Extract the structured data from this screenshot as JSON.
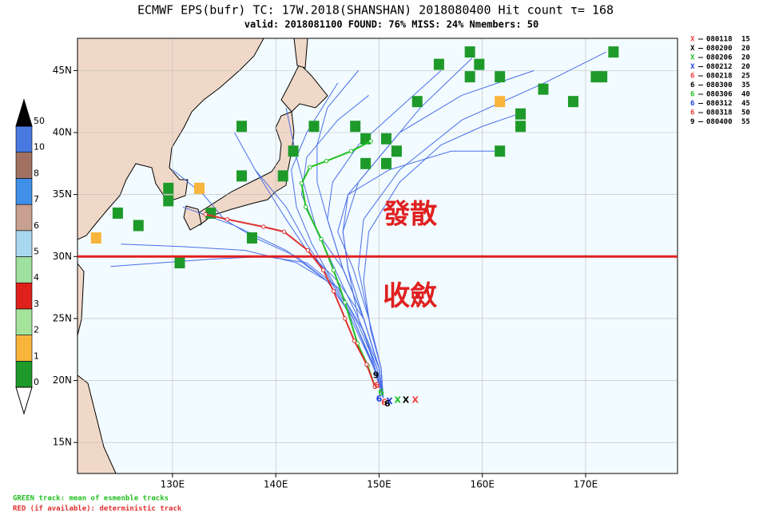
{
  "chart_data": {
    "type": "track-map",
    "title": "ECMWF EPS(bufr) TC: 17W.2018(SHANSHAN) 2018080400 Hit count τ= 168",
    "subtitle": "valid: 2018081100 FOUND: 76% MISS: 24% Nmembers: 50",
    "xlim": [
      120.8,
      178.9
    ],
    "ylim": [
      12.5,
      47.6
    ],
    "xticks": [
      {
        "value": 130,
        "label": "130E"
      },
      {
        "value": 140,
        "label": "140E"
      },
      {
        "value": 150,
        "label": "150E"
      },
      {
        "value": 160,
        "label": "160E"
      },
      {
        "value": 170,
        "label": "170E"
      }
    ],
    "yticks": [
      {
        "value": 15,
        "label": "15N"
      },
      {
        "value": 20,
        "label": "20N"
      },
      {
        "value": 25,
        "label": "25N"
      },
      {
        "value": 30,
        "label": "30N"
      },
      {
        "value": 35,
        "label": "35N"
      },
      {
        "value": 40,
        "label": "40N"
      },
      {
        "value": 45,
        "label": "45N"
      }
    ],
    "grid": true,
    "colorbar": {
      "levels": [
        0,
        1,
        2,
        3,
        4,
        5,
        6,
        7,
        8,
        10,
        50
      ],
      "colors": [
        "#1e9a2a",
        "#f9b43c",
        "#a6e39a",
        "#e0201a",
        "#a0e0a0",
        "#a8d8f0",
        "#c8a090",
        "#4090e8",
        "#a07060",
        "#4878e0"
      ],
      "over": "#000000",
      "under": "#ffffff"
    },
    "boxes": [
      {
        "lon": 155.8,
        "lat": 45.5,
        "count": 1
      },
      {
        "lon": 158.8,
        "lat": 46.5,
        "count": 1
      },
      {
        "lon": 159.7,
        "lat": 45.5,
        "count": 1
      },
      {
        "lon": 158.8,
        "lat": 44.5,
        "count": 1
      },
      {
        "lon": 161.7,
        "lat": 44.5,
        "count": 1
      },
      {
        "lon": 161.7,
        "lat": 42.5,
        "count": 2
      },
      {
        "lon": 165.9,
        "lat": 43.5,
        "count": 1
      },
      {
        "lon": 168.8,
        "lat": 42.5,
        "count": 1
      },
      {
        "lon": 171.0,
        "lat": 44.5,
        "count": 1
      },
      {
        "lon": 171.6,
        "lat": 44.5,
        "count": 1
      },
      {
        "lon": 172.7,
        "lat": 46.5,
        "count": 1
      },
      {
        "lon": 163.7,
        "lat": 41.5,
        "count": 1
      },
      {
        "lon": 163.7,
        "lat": 40.5,
        "count": 1
      },
      {
        "lon": 161.7,
        "lat": 38.5,
        "count": 1
      },
      {
        "lon": 153.7,
        "lat": 42.5,
        "count": 1
      },
      {
        "lon": 136.7,
        "lat": 40.5,
        "count": 1
      },
      {
        "lon": 143.7,
        "lat": 40.5,
        "count": 1
      },
      {
        "lon": 147.7,
        "lat": 40.5,
        "count": 1
      },
      {
        "lon": 148.7,
        "lat": 39.5,
        "count": 1
      },
      {
        "lon": 150.7,
        "lat": 39.5,
        "count": 1
      },
      {
        "lon": 151.7,
        "lat": 38.5,
        "count": 1
      },
      {
        "lon": 148.7,
        "lat": 37.5,
        "count": 1
      },
      {
        "lon": 150.7,
        "lat": 37.5,
        "count": 1
      },
      {
        "lon": 141.7,
        "lat": 38.5,
        "count": 1
      },
      {
        "lon": 136.7,
        "lat": 36.5,
        "count": 1
      },
      {
        "lon": 140.7,
        "lat": 36.5,
        "count": 1
      },
      {
        "lon": 129.6,
        "lat": 35.5,
        "count": 1
      },
      {
        "lon": 129.6,
        "lat": 34.5,
        "count": 1
      },
      {
        "lon": 132.6,
        "lat": 35.5,
        "count": 2
      },
      {
        "lon": 133.7,
        "lat": 33.5,
        "count": 1
      },
      {
        "lon": 124.7,
        "lat": 33.5,
        "count": 1
      },
      {
        "lon": 126.7,
        "lat": 32.5,
        "count": 1
      },
      {
        "lon": 122.6,
        "lat": 31.5,
        "count": 2
      },
      {
        "lon": 137.7,
        "lat": 31.5,
        "count": 1
      },
      {
        "lon": 130.7,
        "lat": 29.5,
        "count": 1
      }
    ],
    "tracks_color": "#4a6ee8",
    "tracks": [
      {
        "lon": [
          150.4,
          149.8,
          148.5,
          146,
          142,
          137,
          131,
          125
        ],
        "lat": [
          18.6,
          20.5,
          24,
          27.5,
          29.5,
          30.5,
          30.8,
          31
        ]
      },
      {
        "lon": [
          150.4,
          149.5,
          147.5,
          145,
          141,
          136,
          131
        ],
        "lat": [
          18.6,
          21,
          25,
          28,
          30.5,
          32.5,
          34
        ]
      },
      {
        "lon": [
          150.4,
          149.5,
          147.5,
          145,
          142,
          138,
          135,
          133,
          130
        ],
        "lat": [
          18.6,
          21,
          25,
          28,
          30,
          31.5,
          33,
          35,
          37
        ]
      },
      {
        "lon": [
          150.4,
          149.5,
          147,
          145,
          143,
          141,
          138,
          136
        ],
        "lat": [
          18.6,
          21,
          25.5,
          28.5,
          31,
          34,
          37,
          40
        ]
      },
      {
        "lon": [
          150.4,
          149.8,
          148,
          146,
          144,
          143,
          142,
          141
        ],
        "lat": [
          18.6,
          21,
          25,
          28.5,
          32,
          35,
          38,
          42
        ]
      },
      {
        "lon": [
          150.4,
          150,
          148.5,
          146.5,
          145,
          145.5,
          148,
          152,
          156
        ],
        "lat": [
          18.6,
          21,
          25,
          29,
          33,
          36,
          39,
          42,
          45
        ]
      },
      {
        "lon": [
          150.4,
          150,
          148.5,
          147,
          146.5,
          148,
          152,
          158,
          165
        ],
        "lat": [
          18.6,
          21,
          25,
          29,
          32,
          36,
          40,
          43,
          45
        ]
      },
      {
        "lon": [
          150.4,
          150.2,
          149,
          148,
          148.5,
          152,
          158,
          166,
          172
        ],
        "lat": [
          18.6,
          21,
          25,
          29,
          33,
          37,
          41,
          44,
          46.5
        ]
      },
      {
        "lon": [
          150.4,
          150.2,
          149,
          147.5,
          146,
          147,
          151,
          157,
          162
        ],
        "lat": [
          18.6,
          21,
          25,
          29,
          32,
          35,
          37,
          38.5,
          38.5
        ]
      },
      {
        "lon": [
          150.4,
          150,
          148.5,
          146,
          143,
          141,
          139.5,
          138
        ],
        "lat": [
          18.6,
          21,
          25,
          28,
          30.5,
          33,
          35,
          37
        ]
      },
      {
        "lon": [
          150.4,
          150,
          148.5,
          146.5,
          145,
          144,
          144,
          145,
          148
        ],
        "lat": [
          18.6,
          21,
          25,
          29,
          33,
          36,
          39,
          42,
          45
        ]
      },
      {
        "lon": [
          150.4,
          150.2,
          149.2,
          148.5,
          149,
          152,
          156,
          160,
          163.5
        ],
        "lat": [
          18.6,
          21,
          24,
          28,
          32,
          36,
          39,
          40.5,
          41.5
        ]
      },
      {
        "lon": [
          150.4,
          149.8,
          148,
          146,
          143,
          139,
          134,
          129,
          124
        ],
        "lat": [
          18.6,
          21,
          24.5,
          27.5,
          29.5,
          30,
          29.8,
          29.5,
          29.2
        ]
      },
      {
        "lon": [
          150.4,
          150,
          148.5,
          146.5,
          144,
          142.5,
          143,
          146,
          149
        ],
        "lat": [
          18.6,
          21,
          25,
          29,
          32,
          35,
          38,
          41,
          43
        ]
      },
      {
        "lon": [
          150.4,
          150,
          148,
          147,
          146.5,
          147,
          150,
          154,
          159
        ],
        "lat": [
          18.6,
          21,
          25,
          29,
          32,
          35,
          38,
          42,
          46
        ]
      },
      {
        "lon": [
          150.4,
          149.6,
          147.5,
          145.5,
          143.5,
          142,
          141.5,
          143,
          146
        ],
        "lat": [
          18.6,
          21,
          25,
          28,
          31,
          34,
          37,
          40,
          44
        ]
      }
    ],
    "mean_track": {
      "color": "#20c020",
      "lon": [
        149.6,
        148.9,
        147.9,
        146.7,
        145.6,
        144.4,
        142.9,
        142.5,
        143.3,
        144.9,
        147.3,
        149.2
      ],
      "lat": [
        19.5,
        21.2,
        23,
        26.3,
        28.9,
        31.4,
        34,
        35.9,
        37.2,
        37.7,
        38.5,
        39.3
      ]
    },
    "deterministic_track": {
      "color": "#e03030",
      "lon": [
        149.6,
        148.8,
        147.6,
        146.7,
        145.6,
        144.6,
        143.1,
        140.8,
        138.8,
        135.3,
        133.2
      ],
      "lat": [
        19.5,
        21.3,
        23.2,
        25,
        27.2,
        28.9,
        30.5,
        32,
        32.4,
        33,
        33.4
      ]
    },
    "legend": [
      {
        "symbol": "X",
        "name": "080118",
        "value": 15,
        "color": "#f04040",
        "lon": 153.5,
        "lat": 18.4
      },
      {
        "symbol": "X",
        "name": "080200",
        "value": 20,
        "color": "#000000",
        "lon": 152.6,
        "lat": 18.4
      },
      {
        "symbol": "X",
        "name": "080206",
        "value": 20,
        "color": "#20c020",
        "lon": 151.8,
        "lat": 18.4
      },
      {
        "symbol": "X",
        "name": "080212",
        "value": 20,
        "color": "#2040e0",
        "lon": 151.0,
        "lat": 18.3
      },
      {
        "symbol": "6",
        "name": "080218",
        "value": 25,
        "color": "#f04040",
        "lon": 150.5,
        "lat": 18.2
      },
      {
        "symbol": "6",
        "name": "080300",
        "value": 35,
        "color": "#000000",
        "lon": 150.8,
        "lat": 18.1
      },
      {
        "symbol": "6",
        "name": "080306",
        "value": 40,
        "color": "#20c020",
        "lon": 150.2,
        "lat": 19.0
      },
      {
        "symbol": "6",
        "name": "080312",
        "value": 45,
        "color": "#2040e0",
        "lon": 150.0,
        "lat": 18.5
      },
      {
        "symbol": "6",
        "name": "080318",
        "value": 50,
        "color": "#f04040",
        "lon": 149.8,
        "lat": 19.6
      },
      {
        "symbol": "9",
        "name": "080400",
        "value": 55,
        "color": "#000000",
        "lon": 149.7,
        "lat": 20.4
      }
    ],
    "reference_line": {
      "lat": 30,
      "color": "#e02020"
    },
    "annotations": [
      {
        "text": "發散",
        "lon": 153,
        "lat": 33.3
      },
      {
        "text": "收斂",
        "lon": 153,
        "lat": 26.7
      }
    ],
    "footnotes": [
      {
        "text": "GREEN track: mean of esmenble tracks",
        "color": "#20c020"
      },
      {
        "text": "RED (if available): deterministic track",
        "color": "#e03030"
      }
    ]
  }
}
